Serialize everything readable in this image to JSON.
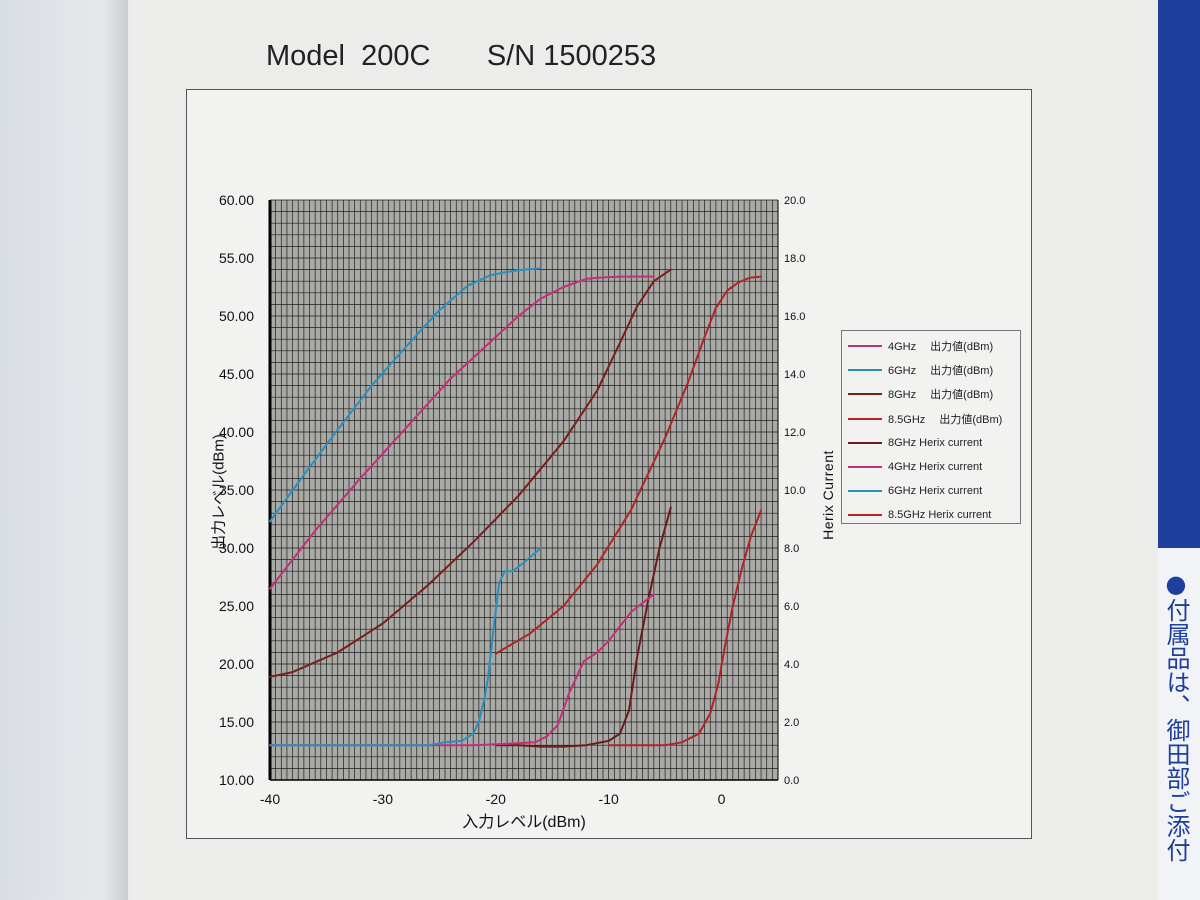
{
  "page_title": "Model  200C       S/N 1500253",
  "right_page_text": "●付属品は、御田部ご添付",
  "chart_data": {
    "type": "line",
    "title": "",
    "xlabel": "入力レベル(dBm)",
    "ylabel": "出力レベル(dBm)",
    "y2label": "Herix  Current",
    "xlim": [
      -40,
      5
    ],
    "ylim": [
      10,
      60
    ],
    "y2lim": [
      0,
      20
    ],
    "x_ticks": [
      "-40",
      "-30",
      "-20",
      "-10",
      "0"
    ],
    "y_ticks": [
      "10.00",
      "15.00",
      "20.00",
      "25.00",
      "30.00",
      "35.00",
      "40.00",
      "45.00",
      "50.00",
      "55.00",
      "60.00"
    ],
    "y2_ticks": [
      "0.0",
      "2.0",
      "4.0",
      "6.0",
      "8.0",
      "10.0",
      "12.0",
      "14.0",
      "16.0",
      "18.0",
      "20.0"
    ],
    "grid": true,
    "legend_position": "right",
    "series": [
      {
        "name": "4GHz　 出力値(dBm)",
        "axis": "left",
        "color": "#c2307a",
        "x": [
          -40,
          -36,
          -32,
          -28,
          -24,
          -20,
          -18,
          -16,
          -14,
          -12,
          -11,
          -9,
          -6
        ],
        "y": [
          26.5,
          31.5,
          36.0,
          40.3,
          44.6,
          48.2,
          50.0,
          51.5,
          52.5,
          53.2,
          53.3,
          53.4,
          53.4
        ]
      },
      {
        "name": "6GHz　 出力値(dBm)",
        "axis": "left",
        "color": "#2a8fc0",
        "x": [
          -40,
          -37,
          -34,
          -31,
          -28,
          -25,
          -22.5,
          -20.5,
          -19,
          -17.5,
          -16
        ],
        "y": [
          32.3,
          36.3,
          40.2,
          44.0,
          47.3,
          50.5,
          52.6,
          53.5,
          53.8,
          54.0,
          54.1
        ]
      },
      {
        "name": "8GHz　 出力値(dBm)",
        "axis": "left",
        "color": "#7a1d1d",
        "x": [
          -40,
          -38,
          -34,
          -30,
          -26,
          -22,
          -18,
          -14,
          -11,
          -9,
          -7.5,
          -6,
          -4.5
        ],
        "y": [
          18.9,
          19.3,
          21.0,
          23.5,
          26.8,
          30.5,
          34.5,
          39.2,
          43.6,
          47.7,
          50.8,
          53.0,
          54.0
        ]
      },
      {
        "name": "8.5GHz　  出力値(dBm)",
        "axis": "left",
        "color": "#b02525",
        "x": [
          -20,
          -17,
          -14,
          -11,
          -8,
          -5,
          -3,
          -1.5,
          -0.5,
          0.5,
          1.5,
          2.5,
          3.5
        ],
        "y": [
          20.9,
          22.6,
          25.0,
          28.6,
          33.3,
          39.5,
          44.2,
          48.2,
          50.7,
          52.2,
          52.9,
          53.3,
          53.4
        ]
      },
      {
        "name": "8GHz Herix current",
        "axis": "right",
        "color": "#6e1a1a",
        "x": [
          -20,
          -18,
          -16,
          -14,
          -12,
          -10,
          -9,
          -8.2,
          -7.5,
          -6.5,
          -5.5,
          -4.5
        ],
        "y": [
          1.2,
          1.2,
          1.15,
          1.15,
          1.2,
          1.35,
          1.6,
          2.4,
          4.2,
          6.2,
          8.0,
          9.4
        ]
      },
      {
        "name": "4GHz Herix current",
        "axis": "right",
        "color": "#c2307a",
        "x": [
          -40,
          -30,
          -22,
          -19,
          -16.5,
          -15.5,
          -14.5,
          -13.5,
          -12.2,
          -11,
          -10,
          -9,
          -8,
          -7,
          -6
        ],
        "y": [
          1.2,
          1.2,
          1.2,
          1.25,
          1.3,
          1.5,
          1.9,
          3.0,
          4.1,
          4.4,
          4.8,
          5.3,
          5.8,
          6.1,
          6.4
        ]
      },
      {
        "name": "6GHz Herix current",
        "axis": "right",
        "color": "#2a8fc0",
        "x": [
          -40,
          -35,
          -30,
          -26,
          -24.5,
          -23,
          -22,
          -21.5,
          -21,
          -20.7,
          -20.2,
          -19.7,
          -19.2,
          -18.5,
          -17.5,
          -16
        ],
        "y": [
          1.2,
          1.2,
          1.2,
          1.2,
          1.3,
          1.35,
          1.6,
          2.0,
          2.8,
          3.5,
          5.2,
          6.8,
          7.2,
          7.2,
          7.5,
          8.0
        ]
      },
      {
        "name": "8.5GHz Herix current",
        "axis": "right",
        "color": "#b02525",
        "x": [
          -10,
          -5,
          -3.5,
          -2,
          -1,
          -0.3,
          0.3,
          1,
          1.8,
          2.6,
          3.5
        ],
        "y": [
          1.2,
          1.2,
          1.3,
          1.6,
          2.3,
          3.3,
          4.6,
          6.0,
          7.3,
          8.4,
          9.3
        ]
      }
    ]
  }
}
